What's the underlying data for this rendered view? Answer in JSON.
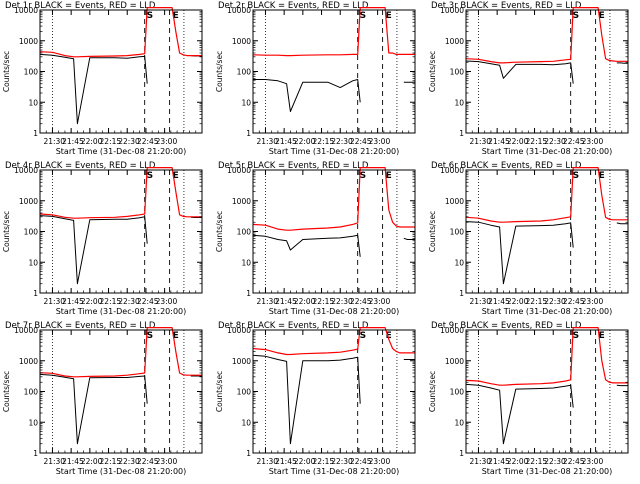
{
  "colors": {
    "background": "#ffffff",
    "axes": "#000000",
    "events_series": "#000000",
    "lld_series": "#ff0000"
  },
  "x_tick_labels": [
    "21:30",
    "21:45",
    "22:00",
    "22:15",
    "22:30",
    "22:45",
    "23:00"
  ],
  "y_tick_labels": [
    "1",
    "10",
    "100",
    "1000",
    "10000"
  ],
  "ylabel": "Counts/sec",
  "xlabel": "Start Time (31-Dec-08 21:20:00)",
  "saa_markers": [
    "S",
    "E"
  ],
  "chart_data": [
    {
      "type": "line",
      "title": "Det 1r BLACK = Events, RED = LLD",
      "xlabel": "Start Time (31-Dec-08 21:20:00)",
      "ylabel": "Counts/sec",
      "y_scale": "log",
      "ylim": [
        1,
        10000
      ],
      "x_ticks": [
        "21:30",
        "21:45",
        "22:00",
        "22:15",
        "22:30",
        "22:45",
        "23:00"
      ],
      "x_minutes": [
        0,
        10,
        20,
        27,
        30,
        40,
        60,
        70,
        80,
        84,
        86,
        90,
        100,
        106,
        109,
        112,
        115,
        118,
        121,
        124,
        127,
        130
      ],
      "series": [
        {
          "name": "Events",
          "values": [
            360,
            340,
            290,
            260,
            2,
            280,
            280,
            270,
            300,
            310,
            40,
            0,
            0,
            0,
            0,
            0,
            0,
            0,
            330,
            320,
            320,
            320
          ]
        },
        {
          "name": "LLD",
          "values": [
            440,
            420,
            330,
            300,
            300,
            310,
            320,
            330,
            360,
            380,
            12000,
            12000,
            12000,
            12000,
            2000,
            400,
            350,
            330,
            330,
            330,
            330,
            330
          ]
        }
      ],
      "vlines_dotted": [
        10,
        115.5
      ],
      "vlines_dashed": [
        84,
        104
      ]
    },
    {
      "type": "line",
      "title": "Det 2r BLACK = Events, RED = LLD",
      "xlabel": "Start Time (31-Dec-08 21:20:00)",
      "ylabel": "Counts/sec",
      "y_scale": "log",
      "ylim": [
        1,
        10000
      ],
      "x_ticks": [
        "21:30",
        "21:45",
        "22:00",
        "22:15",
        "22:30",
        "22:45",
        "23:00"
      ],
      "x_minutes": [
        0,
        10,
        20,
        27,
        30,
        40,
        60,
        70,
        80,
        84,
        86,
        90,
        100,
        106,
        109,
        112,
        115,
        118,
        121,
        124,
        127,
        130
      ],
      "series": [
        {
          "name": "Events",
          "values": [
            55,
            55,
            50,
            40,
            5,
            45,
            45,
            30,
            50,
            55,
            10,
            0,
            0,
            0,
            0,
            0,
            0,
            0,
            45,
            45,
            45,
            45
          ]
        },
        {
          "name": "LLD",
          "values": [
            350,
            340,
            340,
            330,
            330,
            340,
            350,
            350,
            360,
            360,
            12000,
            12000,
            12000,
            12000,
            400,
            400,
            360,
            360,
            360,
            360,
            360,
            360
          ]
        }
      ],
      "vlines_dotted": [
        10,
        115.5
      ],
      "vlines_dashed": [
        84,
        104
      ]
    },
    {
      "type": "line",
      "title": "Det 3r BLACK = Events, RED = LLD",
      "xlabel": "Start Time (31-Dec-08 21:20:00)",
      "ylabel": "Counts/sec",
      "y_scale": "log",
      "ylim": [
        1,
        10000
      ],
      "x_ticks": [
        "21:30",
        "21:45",
        "22:00",
        "22:15",
        "22:30",
        "22:45",
        "23:00"
      ],
      "x_minutes": [
        0,
        10,
        20,
        27,
        30,
        40,
        60,
        70,
        80,
        84,
        86,
        90,
        100,
        106,
        109,
        112,
        115,
        118,
        121,
        124,
        127,
        130
      ],
      "series": [
        {
          "name": "Events",
          "values": [
            220,
            210,
            180,
            160,
            60,
            170,
            170,
            165,
            180,
            190,
            40,
            0,
            0,
            0,
            0,
            0,
            0,
            0,
            190,
            190,
            185,
            185
          ]
        },
        {
          "name": "LLD",
          "values": [
            260,
            250,
            210,
            190,
            190,
            200,
            210,
            215,
            240,
            250,
            12000,
            12000,
            12000,
            12000,
            1500,
            260,
            230,
            220,
            215,
            215,
            215,
            215
          ]
        }
      ],
      "vlines_dotted": [
        10,
        115.5
      ],
      "vlines_dashed": [
        84,
        104
      ]
    },
    {
      "type": "line",
      "title": "Det 4r BLACK = Events, RED = LLD",
      "xlabel": "Start Time (31-Dec-08 21:20:00)",
      "ylabel": "Counts/sec",
      "y_scale": "log",
      "ylim": [
        1,
        10000
      ],
      "x_ticks": [
        "21:30",
        "21:45",
        "22:00",
        "22:15",
        "22:30",
        "22:45",
        "23:00"
      ],
      "x_minutes": [
        0,
        10,
        20,
        27,
        30,
        40,
        60,
        70,
        80,
        84,
        86,
        90,
        100,
        106,
        109,
        112,
        115,
        118,
        121,
        124,
        127,
        130
      ],
      "series": [
        {
          "name": "Events",
          "values": [
            330,
            310,
            260,
            230,
            2,
            240,
            250,
            250,
            280,
            300,
            40,
            0,
            0,
            0,
            0,
            0,
            0,
            0,
            290,
            285,
            285,
            285
          ]
        },
        {
          "name": "LLD",
          "values": [
            370,
            350,
            290,
            270,
            270,
            280,
            290,
            310,
            350,
            370,
            12000,
            12000,
            12000,
            12000,
            2000,
            350,
            310,
            300,
            300,
            300,
            300,
            300
          ]
        }
      ],
      "vlines_dotted": [
        10,
        115.5
      ],
      "vlines_dashed": [
        84,
        104
      ]
    },
    {
      "type": "line",
      "title": "Det 5r BLACK = Events, RED = LLD",
      "xlabel": "Start Time (31-Dec-08 21:20:00)",
      "ylabel": "Counts/sec",
      "y_scale": "log",
      "ylim": [
        1,
        10000
      ],
      "x_ticks": [
        "21:30",
        "21:45",
        "22:00",
        "22:15",
        "22:30",
        "22:45",
        "23:00"
      ],
      "x_minutes": [
        0,
        10,
        20,
        27,
        30,
        40,
        60,
        70,
        80,
        84,
        86,
        90,
        100,
        106,
        109,
        112,
        115,
        118,
        121,
        124,
        127,
        130
      ],
      "series": [
        {
          "name": "Events",
          "values": [
            75,
            70,
            55,
            50,
            25,
            55,
            60,
            62,
            70,
            75,
            15,
            0,
            0,
            0,
            0,
            0,
            0,
            0,
            60,
            55,
            55,
            55
          ]
        },
        {
          "name": "LLD",
          "values": [
            170,
            160,
            120,
            110,
            110,
            120,
            130,
            140,
            170,
            190,
            12000,
            12000,
            12000,
            12000,
            500,
            200,
            150,
            140,
            140,
            140,
            140,
            140
          ]
        }
      ],
      "vlines_dotted": [
        10,
        115.5
      ],
      "vlines_dashed": [
        84,
        104
      ]
    },
    {
      "type": "line",
      "title": "Det 6r BLACK = Events, RED = LLD",
      "xlabel": "Start Time (31-Dec-08 21:20:00)",
      "ylabel": "Counts/sec",
      "y_scale": "log",
      "ylim": [
        1,
        10000
      ],
      "x_ticks": [
        "21:30",
        "21:45",
        "22:00",
        "22:15",
        "22:30",
        "22:45",
        "23:00"
      ],
      "x_minutes": [
        0,
        10,
        20,
        27,
        30,
        40,
        60,
        70,
        80,
        84,
        86,
        90,
        100,
        106,
        109,
        112,
        115,
        118,
        121,
        124,
        127,
        130
      ],
      "series": [
        {
          "name": "Events",
          "values": [
            210,
            200,
            160,
            140,
            2,
            150,
            155,
            160,
            180,
            190,
            30,
            0,
            0,
            0,
            0,
            0,
            0,
            0,
            190,
            180,
            180,
            180
          ]
        },
        {
          "name": "LLD",
          "values": [
            290,
            270,
            220,
            200,
            200,
            210,
            220,
            240,
            280,
            300,
            12000,
            12000,
            12000,
            12000,
            1500,
            290,
            250,
            240,
            240,
            240,
            240,
            240
          ]
        }
      ],
      "vlines_dotted": [
        10,
        115.5
      ],
      "vlines_dashed": [
        84,
        104
      ]
    },
    {
      "type": "line",
      "title": "Det 7r BLACK = Events, RED = LLD",
      "xlabel": "Start Time (31-Dec-08 21:20:00)",
      "ylabel": "Counts/sec",
      "y_scale": "log",
      "ylim": [
        1,
        10000
      ],
      "x_ticks": [
        "21:30",
        "21:45",
        "22:00",
        "22:15",
        "22:30",
        "22:45",
        "23:00"
      ],
      "x_minutes": [
        0,
        10,
        20,
        27,
        30,
        40,
        60,
        70,
        80,
        84,
        86,
        90,
        100,
        106,
        109,
        112,
        115,
        118,
        121,
        124,
        127,
        130
      ],
      "series": [
        {
          "name": "Events",
          "values": [
            360,
            340,
            290,
            260,
            2,
            280,
            285,
            285,
            310,
            320,
            40,
            0,
            0,
            0,
            0,
            0,
            0,
            0,
            320,
            320,
            320,
            320
          ]
        },
        {
          "name": "LLD",
          "values": [
            410,
            390,
            320,
            300,
            300,
            310,
            320,
            340,
            380,
            400,
            12000,
            12000,
            12000,
            12000,
            2000,
            400,
            350,
            340,
            340,
            340,
            340,
            340
          ]
        }
      ],
      "vlines_dotted": [
        10,
        115.5
      ],
      "vlines_dashed": [
        84,
        104
      ]
    },
    {
      "type": "line",
      "title": "Det 8r BLACK = Events, RED = LLD",
      "xlabel": "Start Time (31-Dec-08 21:20:00)",
      "ylabel": "Counts/sec",
      "y_scale": "log",
      "ylim": [
        1,
        10000
      ],
      "x_ticks": [
        "21:30",
        "21:45",
        "22:00",
        "22:15",
        "22:30",
        "22:45",
        "23:00"
      ],
      "x_minutes": [
        0,
        10,
        20,
        27,
        30,
        40,
        60,
        70,
        80,
        84,
        86,
        90,
        100,
        106,
        109,
        112,
        115,
        118,
        121,
        124,
        127,
        130
      ],
      "series": [
        {
          "name": "Events",
          "values": [
            1500,
            1400,
            1100,
            950,
            2,
            1000,
            1000,
            1050,
            1200,
            1300,
            40,
            0,
            0,
            0,
            0,
            0,
            0,
            0,
            1100,
            1100,
            1100,
            1100
          ]
        },
        {
          "name": "LLD",
          "values": [
            2500,
            2300,
            1800,
            1600,
            1600,
            1700,
            1800,
            1900,
            2200,
            2400,
            12000,
            12000,
            12000,
            12000,
            5000,
            2500,
            2000,
            1800,
            1800,
            1800,
            1800,
            1800
          ]
        }
      ],
      "vlines_dotted": [
        10,
        115.5
      ],
      "vlines_dashed": [
        84,
        104
      ]
    },
    {
      "type": "line",
      "title": "Det 9r BLACK = Events, RED = LLD",
      "xlabel": "Start Time (31-Dec-08 21:20:00)",
      "ylabel": "Counts/sec",
      "y_scale": "log",
      "ylim": [
        1,
        10000
      ],
      "x_ticks": [
        "21:30",
        "21:45",
        "22:00",
        "22:15",
        "22:30",
        "22:45",
        "23:00"
      ],
      "x_minutes": [
        0,
        10,
        20,
        27,
        30,
        40,
        60,
        70,
        80,
        84,
        86,
        90,
        100,
        106,
        109,
        112,
        115,
        118,
        121,
        124,
        127,
        130
      ],
      "series": [
        {
          "name": "Events",
          "values": [
            170,
            160,
            130,
            110,
            2,
            120,
            125,
            130,
            150,
            160,
            30,
            0,
            0,
            0,
            0,
            0,
            0,
            0,
            160,
            155,
            155,
            155
          ]
        },
        {
          "name": "LLD",
          "values": [
            230,
            220,
            180,
            160,
            160,
            170,
            180,
            190,
            220,
            240,
            12000,
            12000,
            12000,
            12000,
            1000,
            240,
            200,
            190,
            190,
            190,
            190,
            190
          ]
        }
      ],
      "vlines_dotted": [
        10,
        115.5
      ],
      "vlines_dashed": [
        84,
        104
      ]
    }
  ]
}
